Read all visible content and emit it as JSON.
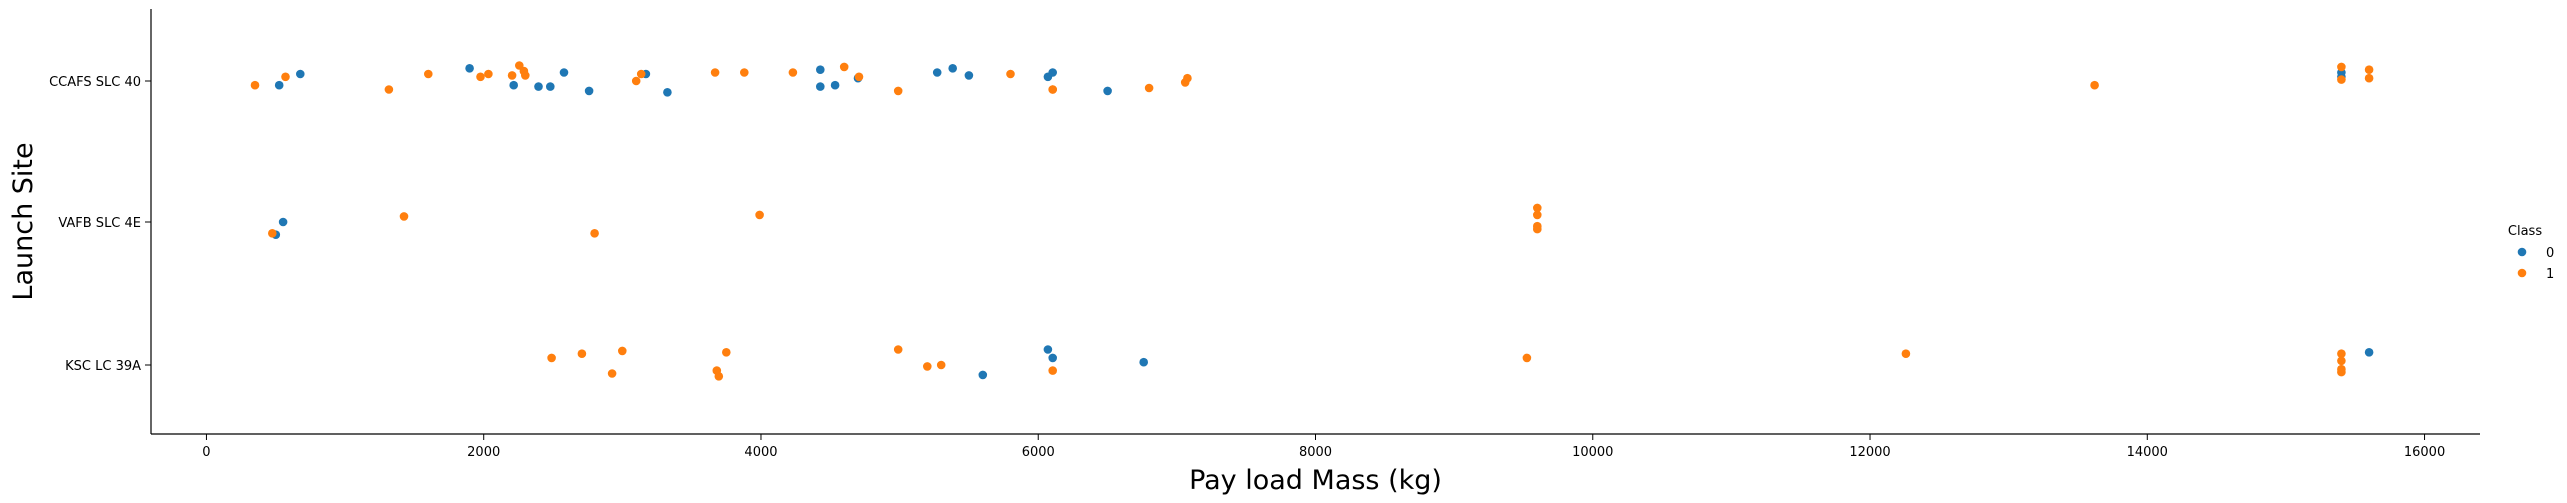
{
  "chart_data": {
    "type": "scatter",
    "title": "",
    "xlabel": "Pay load Mass (kg)",
    "ylabel": "Launch Site",
    "xlim": [
      -400,
      16400
    ],
    "x_ticks": [
      0,
      2000,
      4000,
      6000,
      8000,
      10000,
      12000,
      14000,
      16000
    ],
    "x_tick_labels": [
      "0",
      "2000",
      "4000",
      "6000",
      "8000",
      "10000",
      "12000",
      "14000",
      "16000"
    ],
    "categories": [
      "CCAFS SLC 40",
      "VAFB SLC 4E",
      "KSC LC 39A"
    ],
    "grid": false,
    "legend": {
      "title": "Class",
      "placement": "right",
      "entries": [
        {
          "label": "0",
          "color": "#1f77b4"
        },
        {
          "label": "1",
          "color": "#ff7f0e"
        }
      ]
    },
    "series": [
      {
        "name": "0",
        "color": "#1f77b4",
        "points": [
          {
            "x": 525,
            "y": "CCAFS SLC 40",
            "j": 0.03
          },
          {
            "x": 677,
            "y": "CCAFS SLC 40",
            "j": -0.05
          },
          {
            "x": 1898,
            "y": "CCAFS SLC 40",
            "j": -0.09
          },
          {
            "x": 2216,
            "y": "CCAFS SLC 40",
            "j": 0.03
          },
          {
            "x": 2395,
            "y": "CCAFS SLC 40",
            "j": 0.04
          },
          {
            "x": 2480,
            "y": "CCAFS SLC 40",
            "j": 0.04
          },
          {
            "x": 2579,
            "y": "CCAFS SLC 40",
            "j": -0.06
          },
          {
            "x": 2760,
            "y": "CCAFS SLC 40",
            "j": 0.07
          },
          {
            "x": 3170,
            "y": "CCAFS SLC 40",
            "j": -0.05
          },
          {
            "x": 3325,
            "y": "CCAFS SLC 40",
            "j": 0.08
          },
          {
            "x": 4428,
            "y": "CCAFS SLC 40",
            "j": 0.04
          },
          {
            "x": 4428,
            "y": "CCAFS SLC 40",
            "j": -0.08
          },
          {
            "x": 4535,
            "y": "CCAFS SLC 40",
            "j": 0.03
          },
          {
            "x": 4700,
            "y": "CCAFS SLC 40",
            "j": -0.02
          },
          {
            "x": 5271,
            "y": "CCAFS SLC 40",
            "j": -0.06
          },
          {
            "x": 5383,
            "y": "CCAFS SLC 40",
            "j": -0.09
          },
          {
            "x": 5500,
            "y": "CCAFS SLC 40",
            "j": -0.04
          },
          {
            "x": 6070,
            "y": "CCAFS SLC 40",
            "j": -0.03
          },
          {
            "x": 6104,
            "y": "CCAFS SLC 40",
            "j": -0.06
          },
          {
            "x": 6500,
            "y": "CCAFS SLC 40",
            "j": 0.07
          },
          {
            "x": 15400,
            "y": "CCAFS SLC 40",
            "j": -0.06
          },
          {
            "x": 15400,
            "y": "CCAFS SLC 40",
            "j": -0.03
          },
          {
            "x": 500,
            "y": "VAFB SLC 4E",
            "j": 0.09
          },
          {
            "x": 553,
            "y": "VAFB SLC 4E",
            "j": 0.0
          },
          {
            "x": 5600,
            "y": "KSC LC 39A",
            "j": 0.07
          },
          {
            "x": 6070,
            "y": "KSC LC 39A",
            "j": -0.11
          },
          {
            "x": 6104,
            "y": "KSC LC 39A",
            "j": -0.05
          },
          {
            "x": 6761,
            "y": "KSC LC 39A",
            "j": -0.02
          },
          {
            "x": 15600,
            "y": "KSC LC 39A",
            "j": -0.09
          }
        ]
      },
      {
        "name": "1",
        "color": "#ff7f0e",
        "points": [
          {
            "x": 350,
            "y": "CCAFS SLC 40",
            "j": 0.03
          },
          {
            "x": 570,
            "y": "CCAFS SLC 40",
            "j": -0.03
          },
          {
            "x": 1316,
            "y": "CCAFS SLC 40",
            "j": 0.06
          },
          {
            "x": 1600,
            "y": "CCAFS SLC 40",
            "j": -0.05
          },
          {
            "x": 1977,
            "y": "CCAFS SLC 40",
            "j": -0.03
          },
          {
            "x": 2034,
            "y": "CCAFS SLC 40",
            "j": -0.05
          },
          {
            "x": 2205,
            "y": "CCAFS SLC 40",
            "j": -0.04
          },
          {
            "x": 2257,
            "y": "CCAFS SLC 40",
            "j": -0.11
          },
          {
            "x": 2290,
            "y": "CCAFS SLC 40",
            "j": -0.07
          },
          {
            "x": 2300,
            "y": "CCAFS SLC 40",
            "j": -0.04
          },
          {
            "x": 3100,
            "y": "CCAFS SLC 40",
            "j": 0.0
          },
          {
            "x": 3136,
            "y": "CCAFS SLC 40",
            "j": -0.05
          },
          {
            "x": 3669,
            "y": "CCAFS SLC 40",
            "j": -0.06
          },
          {
            "x": 3880,
            "y": "CCAFS SLC 40",
            "j": -0.06
          },
          {
            "x": 4230,
            "y": "CCAFS SLC 40",
            "j": -0.06
          },
          {
            "x": 4600,
            "y": "CCAFS SLC 40",
            "j": -0.1
          },
          {
            "x": 4707,
            "y": "CCAFS SLC 40",
            "j": -0.03
          },
          {
            "x": 4990,
            "y": "CCAFS SLC 40",
            "j": 0.07
          },
          {
            "x": 5800,
            "y": "CCAFS SLC 40",
            "j": -0.05
          },
          {
            "x": 6104,
            "y": "CCAFS SLC 40",
            "j": 0.06
          },
          {
            "x": 6104,
            "y": "CCAFS SLC 40",
            "j": 0.06
          },
          {
            "x": 6800,
            "y": "CCAFS SLC 40",
            "j": 0.05
          },
          {
            "x": 7060,
            "y": "CCAFS SLC 40",
            "j": 0.01
          },
          {
            "x": 7076,
            "y": "CCAFS SLC 40",
            "j": -0.02
          },
          {
            "x": 13620,
            "y": "CCAFS SLC 40",
            "j": 0.03
          },
          {
            "x": 15400,
            "y": "CCAFS SLC 40",
            "j": -0.1
          },
          {
            "x": 15400,
            "y": "CCAFS SLC 40",
            "j": -0.01
          },
          {
            "x": 15600,
            "y": "CCAFS SLC 40",
            "j": -0.08
          },
          {
            "x": 15600,
            "y": "CCAFS SLC 40",
            "j": -0.02
          },
          {
            "x": 475,
            "y": "VAFB SLC 4E",
            "j": 0.08
          },
          {
            "x": 1425,
            "y": "VAFB SLC 4E",
            "j": -0.04
          },
          {
            "x": 2800,
            "y": "VAFB SLC 4E",
            "j": 0.08
          },
          {
            "x": 3990,
            "y": "VAFB SLC 4E",
            "j": -0.05
          },
          {
            "x": 9600,
            "y": "VAFB SLC 4E",
            "j": -0.1
          },
          {
            "x": 9600,
            "y": "VAFB SLC 4E",
            "j": -0.05
          },
          {
            "x": 9600,
            "y": "VAFB SLC 4E",
            "j": 0.03
          },
          {
            "x": 9600,
            "y": "VAFB SLC 4E",
            "j": 0.05
          },
          {
            "x": 2490,
            "y": "KSC LC 39A",
            "j": -0.05
          },
          {
            "x": 2708,
            "y": "KSC LC 39A",
            "j": -0.08
          },
          {
            "x": 2926,
            "y": "KSC LC 39A",
            "j": 0.06
          },
          {
            "x": 3000,
            "y": "KSC LC 39A",
            "j": -0.1
          },
          {
            "x": 3681,
            "y": "KSC LC 39A",
            "j": 0.04
          },
          {
            "x": 3696,
            "y": "KSC LC 39A",
            "j": 0.08
          },
          {
            "x": 3750,
            "y": "KSC LC 39A",
            "j": -0.09
          },
          {
            "x": 4990,
            "y": "KSC LC 39A",
            "j": -0.11
          },
          {
            "x": 5200,
            "y": "KSC LC 39A",
            "j": 0.01
          },
          {
            "x": 5300,
            "y": "KSC LC 39A",
            "j": 0.0
          },
          {
            "x": 6104,
            "y": "KSC LC 39A",
            "j": 0.04
          },
          {
            "x": 9525,
            "y": "KSC LC 39A",
            "j": -0.05
          },
          {
            "x": 12259,
            "y": "KSC LC 39A",
            "j": -0.08
          },
          {
            "x": 15400,
            "y": "KSC LC 39A",
            "j": -0.08
          },
          {
            "x": 15400,
            "y": "KSC LC 39A",
            "j": -0.03
          },
          {
            "x": 15400,
            "y": "KSC LC 39A",
            "j": 0.03
          },
          {
            "x": 15400,
            "y": "KSC LC 39A",
            "j": 0.05
          }
        ]
      }
    ]
  }
}
